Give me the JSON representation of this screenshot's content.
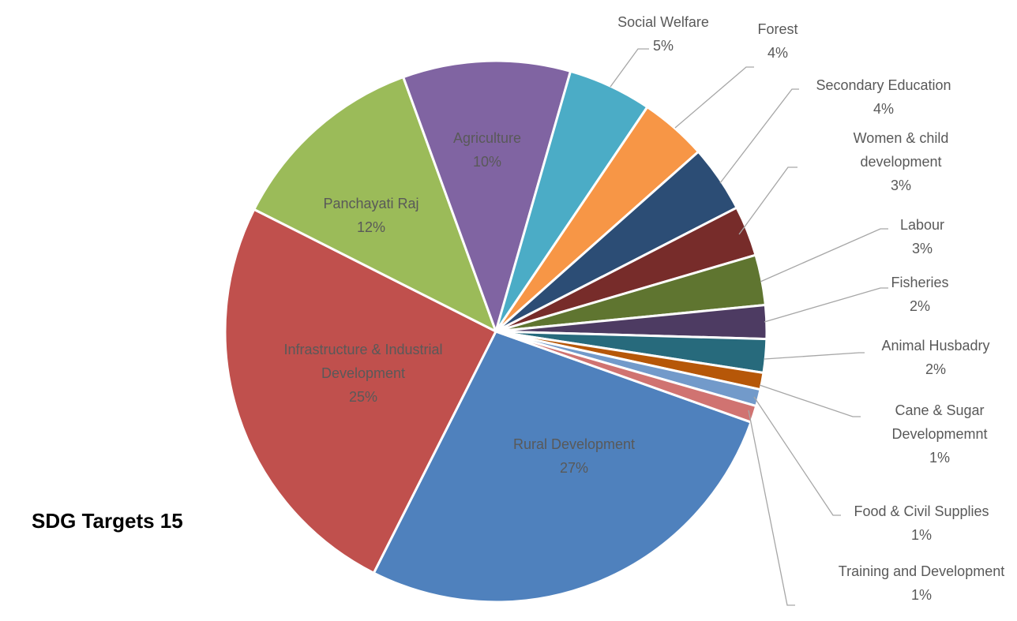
{
  "chart_data": {
    "type": "pie",
    "title": "SDG Targets 15",
    "categories": [
      "Rural Development",
      "Infrastructure & Industrial Development",
      "Panchayati Raj",
      "Agriculture",
      "Social Welfare",
      "Forest",
      "Secondary Education",
      "Women & child development",
      "Labour",
      "Fisheries",
      "Animal Husbadry",
      "Cane & Sugar Developmemnt",
      "Food & Civil Supplies",
      "Training and Development"
    ],
    "values": [
      27,
      25,
      12,
      10,
      5,
      4,
      4,
      3,
      3,
      2,
      2,
      1,
      1,
      1
    ],
    "value_labels": [
      "27%",
      "25%",
      "12%",
      "10%",
      "5%",
      "4%",
      "4%",
      "3%",
      "3%",
      "2%",
      "2%",
      "1%",
      "1%",
      "1%"
    ],
    "colors": [
      "#4f81bd",
      "#c0504d",
      "#9bbb59",
      "#8064a2",
      "#4bacc6",
      "#f79646",
      "#2c4d75",
      "#772c2a",
      "#5f7530",
      "#4d3b62",
      "#276a7c",
      "#b65708",
      "#729aca",
      "#d07371"
    ]
  }
}
